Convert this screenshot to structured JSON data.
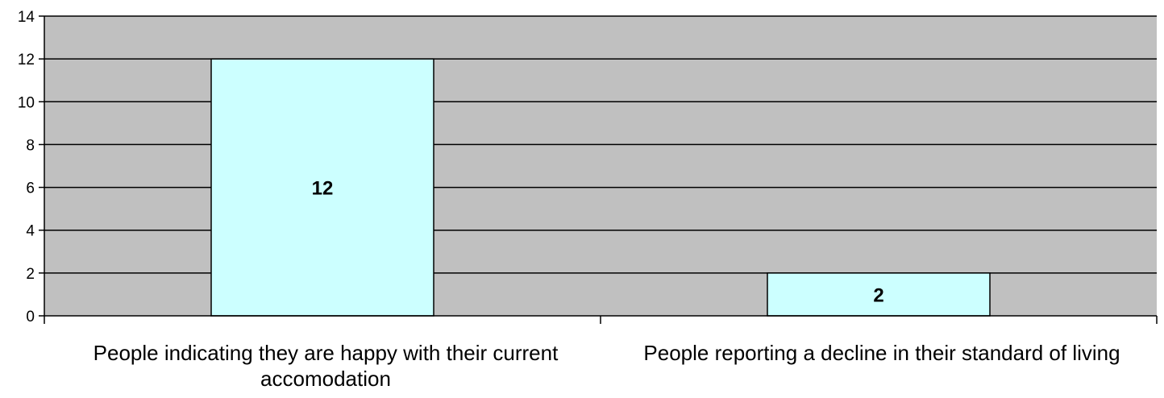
{
  "chart_data": {
    "type": "bar",
    "categories": [
      "People indicating they are happy with their current accomodation",
      "People reporting a decline in their standard of living"
    ],
    "values": [
      12,
      2
    ],
    "data_labels": [
      "12",
      "2"
    ],
    "ylim": [
      0,
      14
    ],
    "yticks": [
      0,
      2,
      4,
      6,
      8,
      10,
      12,
      14
    ],
    "ytick_labels": [
      "0",
      "2",
      "4",
      "6",
      "8",
      "10",
      "12",
      "14"
    ],
    "grid": true,
    "legend": "none",
    "colors": {
      "plot_background": "#c0c0c0",
      "bar_fill": "#ccffff",
      "bar_stroke": "#000000",
      "gridline": "#000000"
    }
  }
}
